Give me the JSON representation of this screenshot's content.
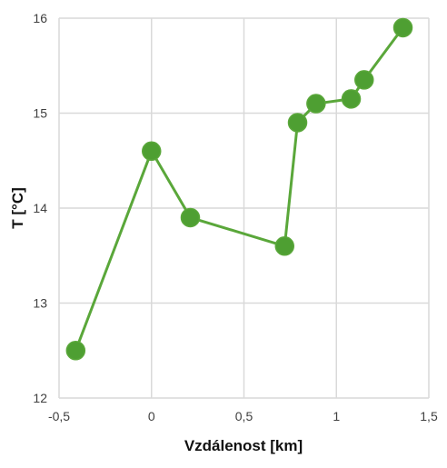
{
  "chart_data": {
    "type": "scatter",
    "xlabel": "Vzdálenost [km]",
    "ylabel": "T [°C]",
    "xlim": [
      -0.5,
      1.5
    ],
    "ylim": [
      12,
      16
    ],
    "x_ticks": [
      "-0,5",
      "0",
      "0,5",
      "1",
      "1,5"
    ],
    "y_ticks": [
      "12",
      "13",
      "14",
      "15",
      "16"
    ],
    "grid": true,
    "legend": "none",
    "series": [
      {
        "color": "#5aa73a",
        "marker_fill": "#4e9f32",
        "points": [
          {
            "x": -0.41,
            "y": 12.5
          },
          {
            "x": 0.0,
            "y": 14.6
          },
          {
            "x": 0.21,
            "y": 13.9
          },
          {
            "x": 0.72,
            "y": 13.6
          },
          {
            "x": 0.79,
            "y": 14.9
          },
          {
            "x": 0.89,
            "y": 15.1
          },
          {
            "x": 1.08,
            "y": 15.15
          },
          {
            "x": 1.15,
            "y": 15.35
          },
          {
            "x": 1.36,
            "y": 15.9
          }
        ]
      }
    ]
  }
}
